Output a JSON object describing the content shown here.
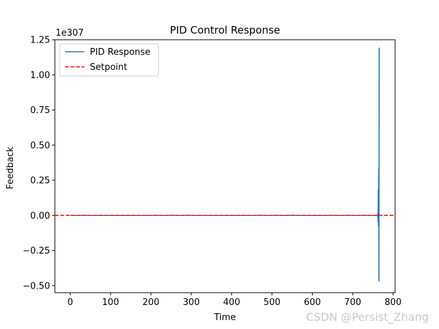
{
  "chart_data": {
    "type": "line",
    "title": "PID Control Response",
    "xlabel": "Time",
    "ylabel": "Feedback",
    "offset_text": "1e307",
    "xlim": [
      -38,
      805
    ],
    "ylim": [
      -0.55,
      1.25
    ],
    "x_ticks": [
      0,
      100,
      200,
      300,
      400,
      500,
      600,
      700,
      800
    ],
    "x_tick_labels": [
      "0",
      "100",
      "200",
      "300",
      "400",
      "500",
      "600",
      "700",
      "800"
    ],
    "y_ticks": [
      -0.5,
      -0.25,
      0.0,
      0.25,
      0.5,
      0.75,
      1.0,
      1.25
    ],
    "y_tick_labels": [
      "−0.50",
      "−0.25",
      "0.00",
      "0.25",
      "0.50",
      "0.75",
      "1.00",
      "1.25"
    ],
    "grid": false,
    "legend_position": "upper-left",
    "series": [
      {
        "name": "PID Response",
        "color": "#1f77b4",
        "style": "solid",
        "x": [
          0,
          700,
          755,
          758,
          760,
          761,
          762,
          762.5,
          763,
          763.5,
          764,
          764.5,
          765,
          765.5,
          766
        ],
        "y": [
          0,
          0,
          0,
          0.0003,
          -0.0008,
          0.002,
          -0.006,
          0.02,
          -0.05,
          0.19,
          -0.08,
          0.34,
          -0.47,
          1.19,
          1.19
        ]
      },
      {
        "name": "Setpoint",
        "color": "#ff0000",
        "style": "dashed",
        "y_constant": 0
      }
    ]
  },
  "watermark": "CSDN @Persist_Zhang"
}
